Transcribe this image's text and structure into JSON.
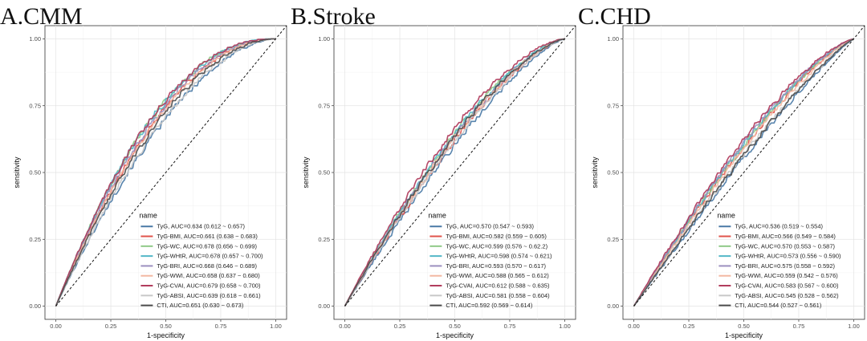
{
  "chart_data": [
    {
      "type": "line",
      "panel_title": "A.CMM",
      "xlabel": "1-specificity",
      "ylabel": "sensitivity",
      "xlim": [
        0,
        1
      ],
      "ylim": [
        0,
        1
      ],
      "ticks": [
        "0.00",
        "0.25",
        "0.50",
        "0.75",
        "1.00"
      ],
      "grid": true,
      "legend_title": "name",
      "legend_position": "bottom-right",
      "diagonal_reference": true,
      "series": [
        {
          "label": "TyG, AUC=0.634 (0.612 ~ 0.657)",
          "auc": 0.634,
          "color": "#4a7aa6"
        },
        {
          "label": "TyG-BMI, AUC=0.661 (0.638 ~ 0.683)",
          "auc": 0.661,
          "color": "#e0534b"
        },
        {
          "label": "TyG-WC, AUC=0.678 (0.656 ~ 0.699)",
          "auc": 0.678,
          "color": "#8fc987"
        },
        {
          "label": "TyG-WHtR, AUC=0.678 (0.657 ~ 0.700)",
          "auc": 0.678,
          "color": "#53b7c7"
        },
        {
          "label": "TyG-BRI, AUC=0.668 (0.646 ~ 0.689)",
          "auc": 0.668,
          "color": "#9b8fbf"
        },
        {
          "label": "TyG-WWI, AUC=0.658 (0.637 ~ 0.680)",
          "auc": 0.658,
          "color": "#f2b8a2"
        },
        {
          "label": "TyG-CVAI, AUC=0.679 (0.658 ~ 0.700)",
          "auc": 0.679,
          "color": "#b03a5b"
        },
        {
          "label": "TyG-ABSI, AUC=0.639 (0.618 ~ 0.661)",
          "auc": 0.639,
          "color": "#c8c8c8"
        },
        {
          "label": "CTI, AUC=0.651 (0.630 ~ 0.673)",
          "auc": 0.651,
          "color": "#4d4d4d"
        }
      ]
    },
    {
      "type": "line",
      "panel_title": "B.Stroke",
      "xlabel": "1-specificity",
      "ylabel": "sensitivity",
      "xlim": [
        0,
        1
      ],
      "ylim": [
        0,
        1
      ],
      "ticks": [
        "0.00",
        "0.25",
        "0.50",
        "0.75",
        "1.00"
      ],
      "grid": true,
      "legend_title": "name",
      "legend_position": "bottom-right",
      "diagonal_reference": true,
      "series": [
        {
          "label": "TyG, AUC=0.570 (0.547 ~ 0.593)",
          "auc": 0.57,
          "color": "#4a7aa6"
        },
        {
          "label": "TyG-BMI, AUC=0.582 (0.559 ~ 0.605)",
          "auc": 0.582,
          "color": "#e0534b"
        },
        {
          "label": "TyG-WC, AUC=0.599 (0.576 ~ 0.62.2)",
          "auc": 0.599,
          "color": "#8fc987"
        },
        {
          "label": "TyG-WHtR, AUC=0.598 (0.574 ~ 0.621)",
          "auc": 0.598,
          "color": "#53b7c7"
        },
        {
          "label": "TyG-BRI, AUC=0.593 (0.570 ~ 0.617)",
          "auc": 0.593,
          "color": "#9b8fbf"
        },
        {
          "label": "TyG-WWI, AUC=0.588 (0.565 ~ 0.612)",
          "auc": 0.588,
          "color": "#f2b8a2"
        },
        {
          "label": "TyG-CVAI, AUC=0.612 (0.588 ~ 0.635)",
          "auc": 0.612,
          "color": "#b03a5b"
        },
        {
          "label": "TyG-ABSI, AUC=0.581 (0.558 ~ 0.604)",
          "auc": 0.581,
          "color": "#c8c8c8"
        },
        {
          "label": "CTI, AUC=0.592 (0.569 ~ 0.614)",
          "auc": 0.592,
          "color": "#4d4d4d"
        }
      ]
    },
    {
      "type": "line",
      "panel_title": "C.CHD",
      "xlabel": "1-specificity",
      "ylabel": "sensitivity",
      "xlim": [
        0,
        1
      ],
      "ylim": [
        0,
        1
      ],
      "ticks": [
        "0.00",
        "0.25",
        "0.50",
        "0.75",
        "1.00"
      ],
      "grid": true,
      "legend_title": "name",
      "legend_position": "bottom-right",
      "diagonal_reference": true,
      "series": [
        {
          "label": "TyG, AUC=0.536 (0.519 ~ 0.554)",
          "auc": 0.536,
          "color": "#4a7aa6"
        },
        {
          "label": "TyG-BMI, AUC=0.566 (0.549 ~ 0.584)",
          "auc": 0.566,
          "color": "#e0534b"
        },
        {
          "label": "TyG-WC, AUC=0.570 (0.553 ~ 0.587)",
          "auc": 0.57,
          "color": "#8fc987"
        },
        {
          "label": "TyG-WHtR, AUC=0.573 (0.556 ~ 0.590)",
          "auc": 0.573,
          "color": "#53b7c7"
        },
        {
          "label": "TyG-BRI, AUC=0.575 (0.558 ~ 0.592)",
          "auc": 0.575,
          "color": "#9b8fbf"
        },
        {
          "label": "TyG-WWI, AUC=0.559 (0.542 ~ 0.576)",
          "auc": 0.559,
          "color": "#f2b8a2"
        },
        {
          "label": "TyG-CVAI, AUC=0.583 (0.567 ~ 0.600)",
          "auc": 0.583,
          "color": "#b03a5b"
        },
        {
          "label": "TyG-ABSI, AUC=0.545 (0.528 ~ 0.562)",
          "auc": 0.545,
          "color": "#c8c8c8"
        },
        {
          "label": "CTI, AUC=0.544 (0.527 ~ 0.561)",
          "auc": 0.544,
          "color": "#4d4d4d"
        }
      ]
    }
  ]
}
